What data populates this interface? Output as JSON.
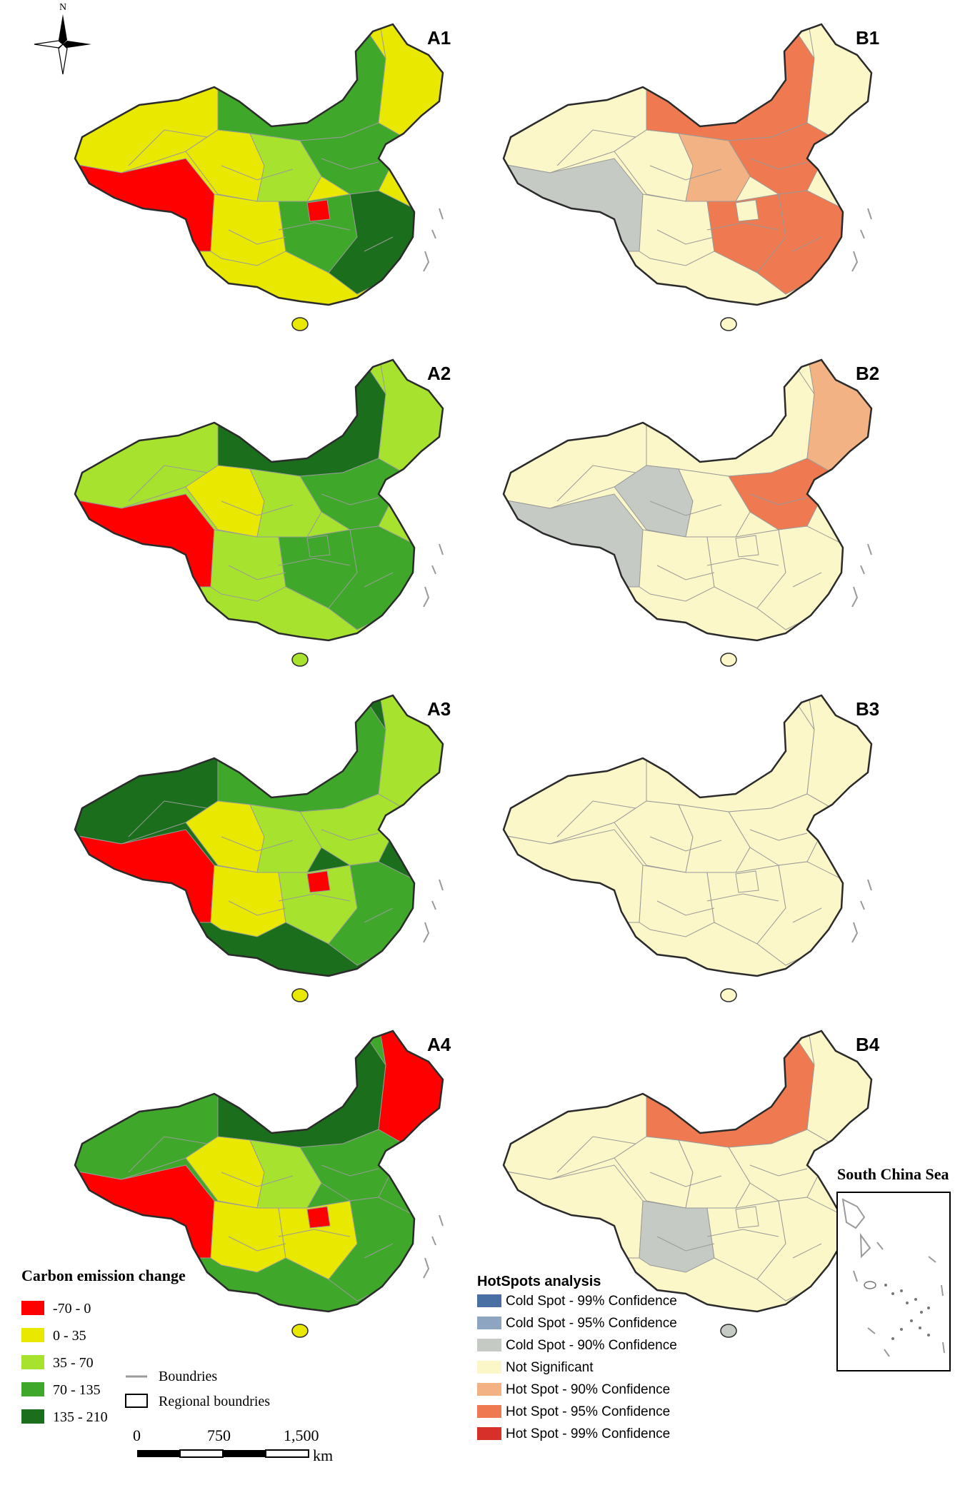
{
  "north_arrow": {
    "label": "N"
  },
  "panels": [
    {
      "id": "A1",
      "label": "A1",
      "scheme": "carbon",
      "fills": [
        "yellow",
        "red",
        "green",
        "yellow",
        "green",
        "lightgreen",
        "yellow",
        "green",
        "red",
        "darkgreen",
        "yellow"
      ]
    },
    {
      "id": "B1",
      "label": "B1",
      "scheme": "hotspot",
      "fills": [
        "notsig",
        "grey90",
        "hot95",
        "notsig",
        "hot95",
        "hot90",
        "notsig",
        "hot95",
        "notsig",
        "hot95",
        "notsig"
      ]
    },
    {
      "id": "A2",
      "label": "A2",
      "scheme": "carbon",
      "fills": [
        "lightgreen",
        "red",
        "darkgreen",
        "yellow",
        "green",
        "lightgreen",
        "lightgreen",
        "green",
        "green",
        "green",
        "lightgreen"
      ]
    },
    {
      "id": "B2",
      "label": "B2",
      "scheme": "hotspot",
      "fills": [
        "notsig",
        "grey90",
        "notsig",
        "grey90",
        "hot95",
        "notsig",
        "notsig",
        "notsig",
        "notsig",
        "notsig",
        "hot90"
      ]
    },
    {
      "id": "A3",
      "label": "A3",
      "scheme": "carbon",
      "fills": [
        "darkgreen",
        "red",
        "green",
        "yellow",
        "lightgreen",
        "lightgreen",
        "yellow",
        "lightgreen",
        "red",
        "green",
        "lightgreen"
      ]
    },
    {
      "id": "B3",
      "label": "B3",
      "scheme": "hotspot",
      "fills": [
        "notsig",
        "notsig",
        "notsig",
        "notsig",
        "notsig",
        "notsig",
        "notsig",
        "notsig",
        "notsig",
        "notsig",
        "notsig"
      ]
    },
    {
      "id": "A4",
      "label": "A4",
      "scheme": "carbon",
      "fills": [
        "green",
        "red",
        "darkgreen",
        "yellow",
        "green",
        "lightgreen",
        "yellow",
        "yellow",
        "red",
        "green",
        "red"
      ]
    },
    {
      "id": "B4",
      "label": "B4",
      "scheme": "hotspot",
      "fills": [
        "notsig",
        "notsig",
        "hot95",
        "notsig",
        "notsig",
        "notsig",
        "grey90",
        "notsig",
        "notsig",
        "notsig",
        "notsig"
      ]
    }
  ],
  "carbon_legend": {
    "title": "Carbon emission change",
    "classes": [
      {
        "key": "red",
        "label": "-70 - 0",
        "color": "#ff0000"
      },
      {
        "key": "yellow",
        "label": "0 - 35",
        "color": "#e8e800"
      },
      {
        "key": "lightgreen",
        "label": "35 - 70",
        "color": "#a6e22e"
      },
      {
        "key": "green",
        "label": "70 - 135",
        "color": "#3fa82a"
      },
      {
        "key": "darkgreen",
        "label": "135 - 210",
        "color": "#1b6e1b"
      }
    ]
  },
  "boundary_legend": {
    "boundries_label": "Boundries",
    "regional_label": "Regional boundries"
  },
  "scale_bar": {
    "ticks": [
      "0",
      "750",
      "1,500"
    ],
    "unit": "km"
  },
  "hotspot_legend": {
    "title": "HotSpots analysis",
    "classes": [
      {
        "key": "cold99",
        "label": "Cold Spot - 99% Confidence",
        "color": "#4a6fa5"
      },
      {
        "key": "cold95",
        "label": "Cold Spot - 95% Confidence",
        "color": "#8ea5c2"
      },
      {
        "key": "grey90",
        "label": "Cold Spot - 90% Confidence",
        "color": "#c5cbc4"
      },
      {
        "key": "notsig",
        "label": "Not Significant",
        "color": "#fbf7c9"
      },
      {
        "key": "hot90",
        "label": "Hot Spot - 90% Confidence",
        "color": "#f3b283"
      },
      {
        "key": "hot95",
        "label": "Hot Spot - 95% Confidence",
        "color": "#ef7a52"
      },
      {
        "key": "hot99",
        "label": "Hot Spot - 99% Confidence",
        "color": "#d7302a"
      }
    ]
  },
  "inset": {
    "title": "South China Sea"
  },
  "colors": {
    "boundary_line": "#9a9a9a",
    "regional_line": "#2b2b2b",
    "sea_line": "#9a9a9a"
  }
}
